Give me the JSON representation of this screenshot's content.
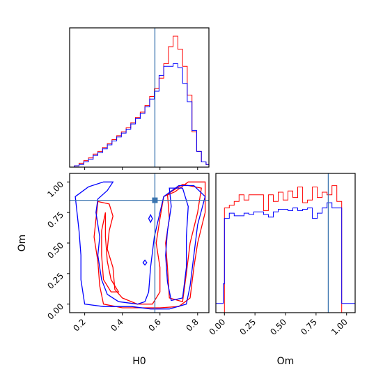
{
  "colors": {
    "series_a": "#ff0000",
    "series_b": "#0000ff",
    "truth": "#3b75af"
  },
  "chart_data": [
    {
      "type": "histogram",
      "panel": "H0 marginal",
      "xlim": [
        0.12,
        0.86
      ],
      "ylim": [
        0,
        1.0
      ],
      "y_ticks": "hidden",
      "x_ticks": [
        0.2,
        0.4,
        0.6,
        0.8
      ],
      "x_tick_labels": "hidden",
      "truth_x": 0.573,
      "bin_edges": [
        0.12,
        0.145,
        0.17,
        0.195,
        0.22,
        0.245,
        0.27,
        0.295,
        0.32,
        0.345,
        0.37,
        0.395,
        0.42,
        0.445,
        0.47,
        0.495,
        0.52,
        0.545,
        0.57,
        0.595,
        0.62,
        0.645,
        0.67,
        0.695,
        0.72,
        0.745,
        0.77,
        0.795,
        0.82,
        0.845,
        0.86
      ],
      "series": [
        {
          "color": "#ff0000",
          "values": [
            0.0,
            0.01,
            0.03,
            0.05,
            0.07,
            0.1,
            0.12,
            0.15,
            0.18,
            0.21,
            0.24,
            0.27,
            0.3,
            0.34,
            0.38,
            0.42,
            0.47,
            0.54,
            0.6,
            0.68,
            0.79,
            0.92,
            1.0,
            0.9,
            0.77,
            0.55,
            0.27,
            0.12,
            0.04,
            0.02
          ]
        },
        {
          "color": "#0000ff",
          "values": [
            0.0,
            0.01,
            0.02,
            0.04,
            0.06,
            0.09,
            0.11,
            0.14,
            0.17,
            0.2,
            0.23,
            0.26,
            0.29,
            0.33,
            0.37,
            0.41,
            0.46,
            0.52,
            0.58,
            0.7,
            0.77,
            0.77,
            0.79,
            0.76,
            0.64,
            0.5,
            0.28,
            0.12,
            0.04,
            0.02
          ]
        }
      ]
    },
    {
      "type": "contour",
      "panel": "H0 vs Om joint",
      "xlabel": "H0",
      "ylabel": "Om",
      "xlim": [
        0.12,
        0.86
      ],
      "ylim": [
        -0.07,
        1.07
      ],
      "x_ticks": [
        0.2,
        0.4,
        0.6,
        0.8
      ],
      "x_tick_labels": [
        "0.2",
        "0.4",
        "0.6",
        "0.8"
      ],
      "y_ticks": [
        0.0,
        0.25,
        0.5,
        0.75,
        1.0
      ],
      "y_tick_labels": [
        "0.00",
        "0.25",
        "0.50",
        "0.75",
        "1.00"
      ],
      "truth": [
        0.573,
        0.85
      ],
      "contours": [
        {
          "color": "#ff0000",
          "points": [
            [
              0.27,
              0.84
            ],
            [
              0.33,
              0.82
            ],
            [
              0.35,
              0.72
            ],
            [
              0.33,
              0.6
            ],
            [
              0.32,
              0.45
            ],
            [
              0.35,
              0.3
            ],
            [
              0.36,
              0.12
            ],
            [
              0.4,
              0.05
            ],
            [
              0.48,
              0.0
            ],
            [
              0.56,
              0.0
            ],
            [
              0.6,
              0.1
            ],
            [
              0.6,
              0.3
            ],
            [
              0.58,
              0.5
            ],
            [
              0.6,
              0.7
            ],
            [
              0.62,
              0.88
            ],
            [
              0.68,
              0.92
            ],
            [
              0.75,
              1.0
            ],
            [
              0.84,
              1.0
            ],
            [
              0.84,
              0.75
            ],
            [
              0.8,
              0.5
            ],
            [
              0.78,
              0.3
            ],
            [
              0.76,
              0.05
            ],
            [
              0.7,
              -0.02
            ],
            [
              0.6,
              -0.03
            ],
            [
              0.4,
              -0.03
            ],
            [
              0.3,
              0.0
            ],
            [
              0.28,
              0.15
            ],
            [
              0.27,
              0.35
            ],
            [
              0.25,
              0.55
            ],
            [
              0.27,
              0.84
            ]
          ]
        },
        {
          "color": "#ff0000",
          "points": [
            [
              0.31,
              0.75
            ],
            [
              0.31,
              0.55
            ],
            [
              0.32,
              0.35
            ],
            [
              0.34,
              0.2
            ],
            [
              0.38,
              0.1
            ],
            [
              0.34,
              0.1
            ],
            [
              0.3,
              0.2
            ],
            [
              0.29,
              0.4
            ],
            [
              0.29,
              0.6
            ],
            [
              0.31,
              0.75
            ]
          ]
        },
        {
          "color": "#ff0000",
          "points": [
            [
              0.64,
              0.9
            ],
            [
              0.65,
              0.7
            ],
            [
              0.63,
              0.5
            ],
            [
              0.64,
              0.3
            ],
            [
              0.65,
              0.05
            ],
            [
              0.72,
              0.02
            ],
            [
              0.74,
              0.25
            ],
            [
              0.76,
              0.5
            ],
            [
              0.8,
              0.75
            ],
            [
              0.82,
              0.95
            ],
            [
              0.72,
              0.98
            ],
            [
              0.64,
              0.9
            ]
          ]
        },
        {
          "color": "#0000ff",
          "points": [
            [
              0.15,
              0.88
            ],
            [
              0.22,
              0.96
            ],
            [
              0.3,
              1.0
            ],
            [
              0.35,
              1.0
            ],
            [
              0.32,
              0.93
            ],
            [
              0.27,
              0.86
            ],
            [
              0.26,
              0.75
            ],
            [
              0.28,
              0.55
            ],
            [
              0.27,
              0.4
            ],
            [
              0.29,
              0.2
            ],
            [
              0.32,
              0.08
            ],
            [
              0.38,
              0.02
            ],
            [
              0.48,
              0.0
            ],
            [
              0.52,
              0.02
            ],
            [
              0.54,
              0.1
            ],
            [
              0.55,
              0.3
            ],
            [
              0.57,
              0.55
            ],
            [
              0.6,
              0.75
            ],
            [
              0.62,
              0.88
            ],
            [
              0.7,
              0.97
            ],
            [
              0.78,
              0.97
            ],
            [
              0.84,
              0.88
            ],
            [
              0.8,
              0.65
            ],
            [
              0.78,
              0.4
            ],
            [
              0.76,
              0.15
            ],
            [
              0.74,
              0.0
            ],
            [
              0.65,
              -0.04
            ],
            [
              0.55,
              -0.04
            ],
            [
              0.45,
              -0.02
            ],
            [
              0.3,
              -0.02
            ],
            [
              0.2,
              0.0
            ],
            [
              0.18,
              0.2
            ],
            [
              0.18,
              0.4
            ],
            [
              0.17,
              0.6
            ],
            [
              0.15,
              0.88
            ]
          ]
        },
        {
          "color": "#0000ff",
          "points": [
            [
              0.65,
              0.95
            ],
            [
              0.66,
              0.8
            ],
            [
              0.64,
              0.6
            ],
            [
              0.63,
              0.4
            ],
            [
              0.64,
              0.18
            ],
            [
              0.66,
              0.03
            ],
            [
              0.72,
              0.05
            ],
            [
              0.74,
              0.3
            ],
            [
              0.74,
              0.55
            ],
            [
              0.75,
              0.8
            ],
            [
              0.72,
              0.95
            ],
            [
              0.65,
              0.95
            ]
          ]
        },
        {
          "color": "#0000ff",
          "points": [
            [
              0.55,
              0.73
            ],
            [
              0.56,
              0.7
            ],
            [
              0.55,
              0.67
            ],
            [
              0.54,
              0.7
            ],
            [
              0.55,
              0.73
            ]
          ]
        },
        {
          "color": "#0000ff",
          "points": [
            [
              0.52,
              0.36
            ],
            [
              0.53,
              0.34
            ],
            [
              0.52,
              0.32
            ],
            [
              0.51,
              0.34
            ],
            [
              0.52,
              0.36
            ]
          ]
        }
      ]
    },
    {
      "type": "histogram",
      "panel": "Om marginal",
      "xlabel": "Om",
      "xlim": [
        -0.07,
        1.07
      ],
      "ylim": [
        0,
        1.0
      ],
      "y_ticks": "hidden",
      "x_ticks": [
        0.0,
        0.25,
        0.5,
        0.75,
        1.0
      ],
      "x_tick_labels": [
        "0.00",
        "0.25",
        "0.50",
        "0.75",
        "1.00"
      ],
      "truth_x": 0.85,
      "bin_edges": [
        -0.07,
        -0.01,
        0.0,
        0.04,
        0.08,
        0.12,
        0.16,
        0.2,
        0.24,
        0.28,
        0.32,
        0.36,
        0.4,
        0.44,
        0.48,
        0.52,
        0.56,
        0.6,
        0.64,
        0.68,
        0.72,
        0.76,
        0.8,
        0.84,
        0.88,
        0.92,
        0.96,
        1.0,
        1.07
      ],
      "series": [
        {
          "color": "#ff0000",
          "values": [
            0.0,
            0.0,
            0.8,
            0.82,
            0.85,
            0.9,
            0.86,
            0.9,
            0.9,
            0.9,
            0.78,
            0.9,
            0.85,
            0.92,
            0.86,
            0.93,
            0.88,
            0.96,
            0.84,
            0.86,
            0.96,
            0.88,
            0.92,
            0.9,
            0.97,
            0.85,
            0.0,
            0.0
          ]
        },
        {
          "color": "#0000ff",
          "values": [
            0.07,
            0.22,
            0.72,
            0.76,
            0.74,
            0.74,
            0.76,
            0.75,
            0.77,
            0.77,
            0.75,
            0.73,
            0.77,
            0.79,
            0.79,
            0.78,
            0.8,
            0.78,
            0.79,
            0.8,
            0.72,
            0.76,
            0.8,
            0.84,
            0.8,
            0.8,
            0.07,
            0.07
          ]
        }
      ]
    }
  ]
}
